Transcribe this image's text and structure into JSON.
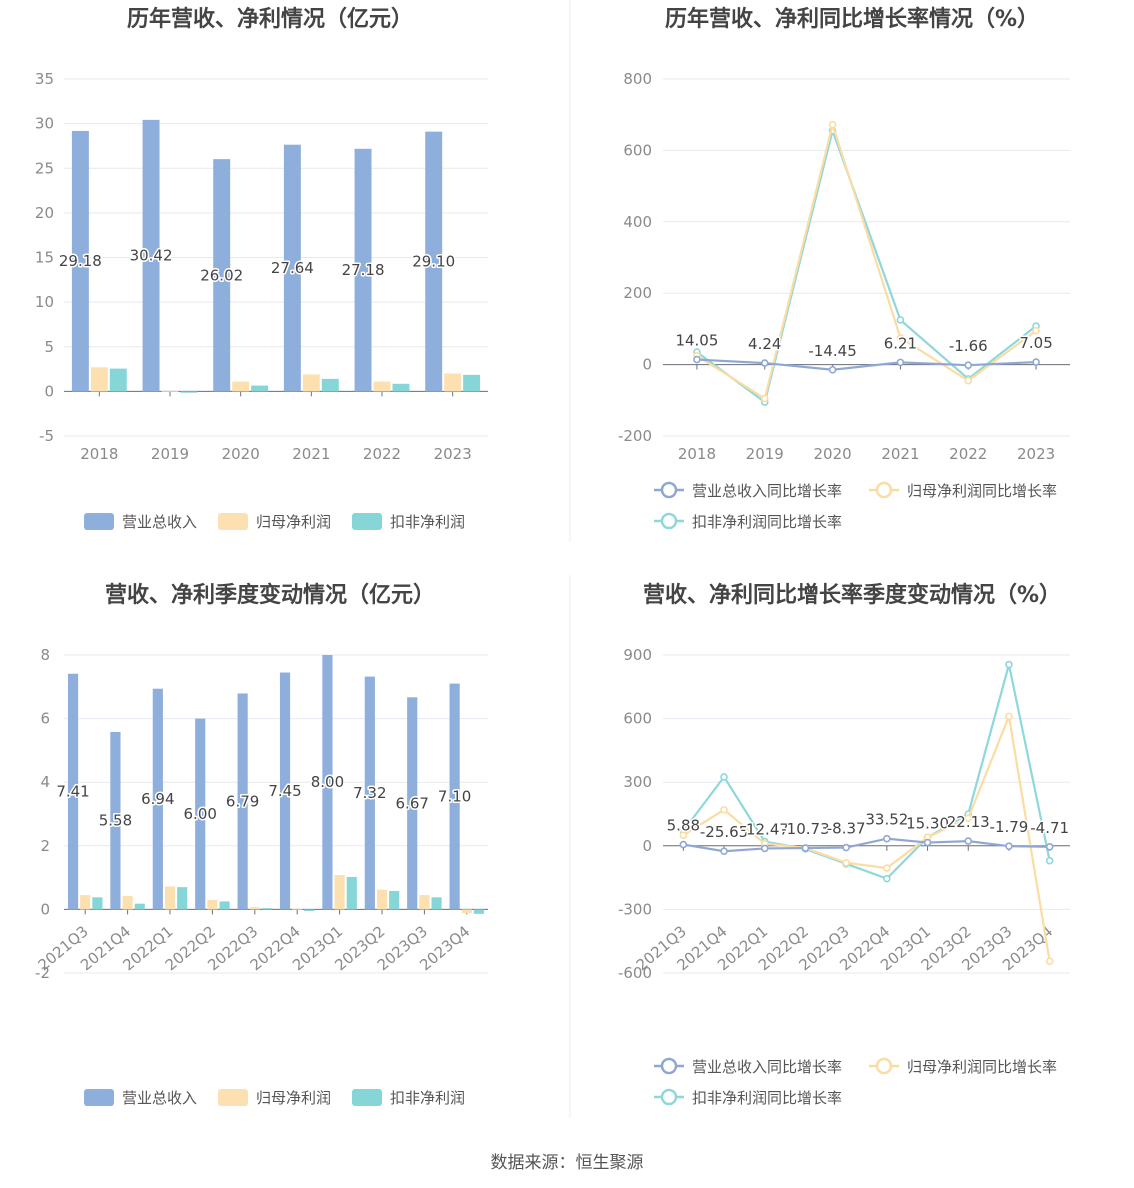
{
  "source": "数据来源：恒生聚源",
  "colors": {
    "revenue": "#8eaedb",
    "net_profit": "#fde0b0",
    "deducted_profit": "#86d6d8",
    "growth_revenue": "#8fa8d3",
    "growth_net": "#fbdca3",
    "growth_deducted": "#8ed8da"
  },
  "chart_data": [
    {
      "id": "annual-bar",
      "type": "bar",
      "title": "历年营收、净利情况（亿元）",
      "categories": [
        "2018",
        "2019",
        "2020",
        "2021",
        "2022",
        "2023"
      ],
      "ylim": [
        -5,
        35
      ],
      "yticks": [
        -5,
        0,
        5,
        10,
        15,
        20,
        25,
        30,
        35
      ],
      "grid": true,
      "legend_position": "bottom",
      "series": [
        {
          "name": "营业总收入",
          "values": [
            29.18,
            30.42,
            26.02,
            27.64,
            27.18,
            29.1
          ],
          "labels": [
            "29.18",
            "30.42",
            "26.02",
            "27.64",
            "27.18",
            "29.10"
          ]
        },
        {
          "name": "归母净利润",
          "values": [
            2.7,
            0.05,
            1.1,
            1.9,
            1.1,
            2.0
          ]
        },
        {
          "name": "扣非净利润",
          "values": [
            2.55,
            -0.15,
            0.65,
            1.4,
            0.85,
            1.85
          ]
        }
      ]
    },
    {
      "id": "annual-growth",
      "type": "line",
      "title": "历年营收、净利同比增长率情况（%）",
      "categories": [
        "2018",
        "2019",
        "2020",
        "2021",
        "2022",
        "2023"
      ],
      "ylim": [
        -200,
        800
      ],
      "yticks": [
        -200,
        0,
        200,
        400,
        600,
        800
      ],
      "grid": true,
      "legend_position": "bottom",
      "series": [
        {
          "name": "营业总收入同比增长率",
          "values": [
            14.05,
            4.24,
            -14.45,
            6.21,
            -1.66,
            7.05
          ],
          "labels": [
            "14.05",
            "4.24",
            "-14.45",
            "6.21",
            "-1.66",
            "7.05"
          ]
        },
        {
          "name": "归母净利润同比增长率",
          "values": [
            25,
            -95,
            672,
            75,
            -45,
            95
          ]
        },
        {
          "name": "扣非净利润同比增长率",
          "values": [
            35,
            -105,
            655,
            125,
            -40,
            108
          ]
        }
      ]
    },
    {
      "id": "quarterly-bar",
      "type": "bar",
      "title": "营收、净利季度变动情况（亿元）",
      "categories": [
        "2021Q3",
        "2021Q4",
        "2022Q1",
        "2022Q2",
        "2022Q3",
        "2022Q4",
        "2023Q1",
        "2023Q2",
        "2023Q3",
        "2023Q4"
      ],
      "ylim": [
        -2,
        8
      ],
      "yticks": [
        -2,
        0,
        2,
        4,
        6,
        8
      ],
      "grid": true,
      "legend_position": "bottom",
      "series": [
        {
          "name": "营业总收入",
          "values": [
            7.41,
            5.58,
            6.94,
            6.0,
            6.79,
            7.45,
            8.0,
            7.32,
            6.67,
            7.1
          ],
          "labels": [
            "7.41",
            "5.58",
            "6.94",
            "6.00",
            "6.79",
            "7.45",
            "8.00",
            "7.32",
            "6.67",
            "7.10"
          ]
        },
        {
          "name": "归母净利润",
          "values": [
            0.45,
            0.42,
            0.72,
            0.3,
            0.07,
            0.02,
            1.08,
            0.62,
            0.45,
            -0.12
          ]
        },
        {
          "name": "扣非净利润",
          "values": [
            0.38,
            0.18,
            0.7,
            0.25,
            0.04,
            -0.05,
            1.02,
            0.58,
            0.38,
            -0.14
          ]
        }
      ]
    },
    {
      "id": "quarterly-growth",
      "type": "line",
      "title": "营收、净利同比增长率季度变动情况（%）",
      "categories": [
        "2021Q3",
        "2021Q4",
        "2022Q1",
        "2022Q2",
        "2022Q3",
        "2022Q4",
        "2023Q1",
        "2023Q2",
        "2023Q3",
        "2023Q4"
      ],
      "ylim": [
        -600,
        900
      ],
      "yticks": [
        -600,
        -300,
        0,
        300,
        600,
        900
      ],
      "grid": true,
      "legend_position": "bottom",
      "series": [
        {
          "name": "营业总收入同比增长率",
          "values": [
            5.88,
            -25.65,
            -12.47,
            -10.73,
            -8.37,
            33.52,
            15.3,
            22.13,
            -1.79,
            -4.71
          ],
          "labels": [
            "5.88",
            "-25.65",
            "-12.47",
            "-10.73",
            "-8.37",
            "33.52",
            "15.30",
            "22.13",
            "-1.79",
            "-4.71"
          ]
        },
        {
          "name": "归母净利润同比增长率",
          "values": [
            50,
            170,
            10,
            -10,
            -80,
            -105,
            40,
            130,
            610,
            -545
          ]
        },
        {
          "name": "扣非净利润同比增长率",
          "values": [
            70,
            325,
            20,
            -15,
            -85,
            -155,
            40,
            150,
            855,
            -70
          ]
        }
      ]
    }
  ]
}
